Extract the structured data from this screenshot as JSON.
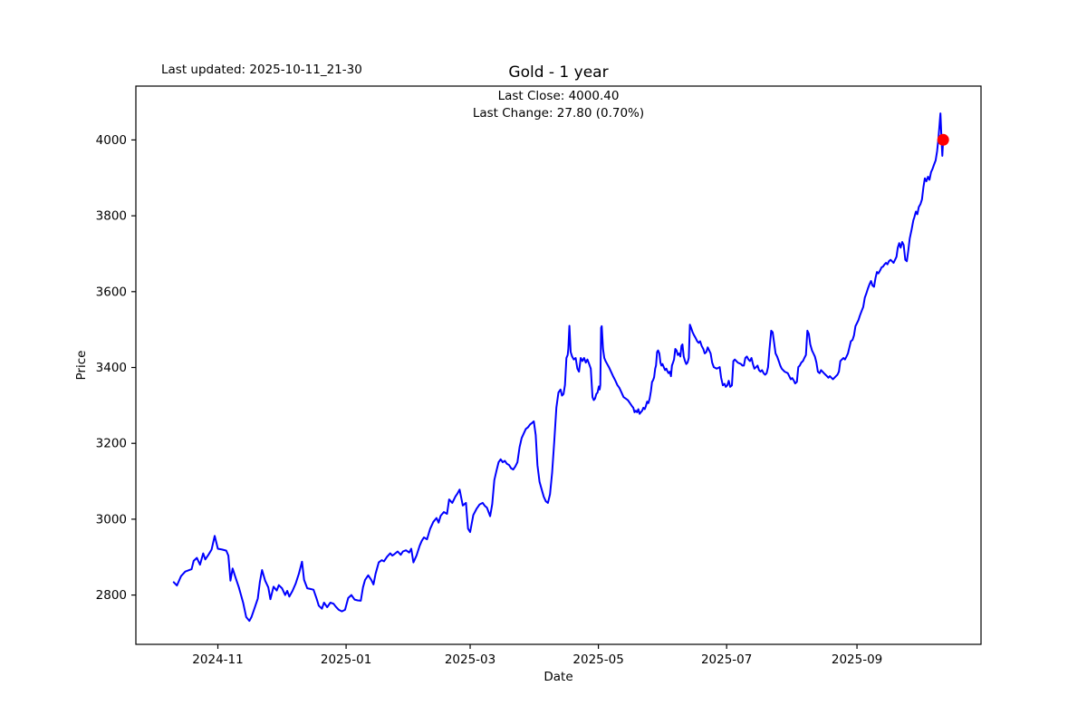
{
  "header": {
    "last_updated": "Last updated: 2025-10-11_21-30"
  },
  "chart_data": {
    "type": "line",
    "title": "Gold - 1 year",
    "xlabel": "Date",
    "ylabel": "Price",
    "annotation": {
      "line1": "Last Close: 4000.40",
      "line2": "Last Change: 27.80 (0.70%)"
    },
    "last_close": 4000.4,
    "last_change": 27.8,
    "last_change_pct": 0.7,
    "line_color": "#0000ff",
    "marker_color": "#ff0000",
    "axis_color": "#000000",
    "grid": false,
    "legend": "none",
    "start_date": "2024-10-11",
    "x_unit": "days_since_start_date",
    "x_domain": [
      -18,
      384
    ],
    "y_domain": [
      2670,
      4142
    ],
    "x_ticks": [
      {
        "day": 21,
        "label": "2024-11"
      },
      {
        "day": 82,
        "label": "2025-01"
      },
      {
        "day": 141,
        "label": "2025-03"
      },
      {
        "day": 202,
        "label": "2025-05"
      },
      {
        "day": 263,
        "label": "2025-07"
      },
      {
        "day": 325,
        "label": "2025-09"
      }
    ],
    "y_ticks": [
      2800,
      3000,
      3200,
      3400,
      3600,
      3800,
      4000
    ],
    "points": [
      [
        0,
        2834
      ],
      [
        1.5,
        2825
      ],
      [
        3.5,
        2850
      ],
      [
        5.5,
        2862
      ],
      [
        8.5,
        2868
      ],
      [
        9.5,
        2890
      ],
      [
        11,
        2898
      ],
      [
        12.5,
        2880
      ],
      [
        14,
        2910
      ],
      [
        15,
        2894
      ],
      [
        16.5,
        2906
      ],
      [
        18,
        2920
      ],
      [
        19.5,
        2956
      ],
      [
        21,
        2922
      ],
      [
        23,
        2920
      ],
      [
        25,
        2917
      ],
      [
        26,
        2904
      ],
      [
        27,
        2838
      ],
      [
        28,
        2870
      ],
      [
        29.5,
        2845
      ],
      [
        31,
        2820
      ],
      [
        33,
        2780
      ],
      [
        34.5,
        2742
      ],
      [
        36,
        2732
      ],
      [
        37,
        2742
      ],
      [
        38.5,
        2766
      ],
      [
        40,
        2791
      ],
      [
        41,
        2835
      ],
      [
        42,
        2866
      ],
      [
        43.5,
        2838
      ],
      [
        45,
        2820
      ],
      [
        46,
        2789
      ],
      [
        47.5,
        2822
      ],
      [
        49,
        2812
      ],
      [
        50,
        2826
      ],
      [
        51.5,
        2818
      ],
      [
        53,
        2800
      ],
      [
        54,
        2811
      ],
      [
        55,
        2796
      ],
      [
        56.5,
        2811
      ],
      [
        58,
        2830
      ],
      [
        59.5,
        2856
      ],
      [
        61,
        2888
      ],
      [
        62,
        2840
      ],
      [
        63.5,
        2818
      ],
      [
        65,
        2816
      ],
      [
        66.5,
        2814
      ],
      [
        68,
        2790
      ],
      [
        69,
        2772
      ],
      [
        70.5,
        2764
      ],
      [
        71.5,
        2780
      ],
      [
        73,
        2768
      ],
      [
        74.5,
        2780
      ],
      [
        76,
        2777
      ],
      [
        77,
        2770
      ],
      [
        78.5,
        2761
      ],
      [
        80,
        2757
      ],
      [
        81.5,
        2761
      ],
      [
        83,
        2792
      ],
      [
        84.5,
        2800
      ],
      [
        86,
        2788
      ],
      [
        87.5,
        2786
      ],
      [
        89,
        2785
      ],
      [
        90,
        2820
      ],
      [
        91,
        2840
      ],
      [
        92.5,
        2852
      ],
      [
        94,
        2840
      ],
      [
        95,
        2828
      ],
      [
        96,
        2856
      ],
      [
        97.5,
        2886
      ],
      [
        99,
        2892
      ],
      [
        100,
        2889
      ],
      [
        101.5,
        2901
      ],
      [
        103,
        2910
      ],
      [
        104,
        2904
      ],
      [
        105,
        2908
      ],
      [
        106.5,
        2915
      ],
      [
        108,
        2906
      ],
      [
        109,
        2915
      ],
      [
        110.5,
        2918
      ],
      [
        112,
        2912
      ],
      [
        113,
        2922
      ],
      [
        114,
        2886
      ],
      [
        115.5,
        2904
      ],
      [
        117,
        2930
      ],
      [
        118,
        2943
      ],
      [
        119,
        2952
      ],
      [
        120.5,
        2947
      ],
      [
        122,
        2975
      ],
      [
        123.5,
        2993
      ],
      [
        125,
        3003
      ],
      [
        126,
        2991
      ],
      [
        127,
        3009
      ],
      [
        128.5,
        3019
      ],
      [
        130,
        3014
      ],
      [
        131,
        3052
      ],
      [
        132.5,
        3043
      ],
      [
        134,
        3060
      ],
      [
        135,
        3068
      ],
      [
        136,
        3078
      ],
      [
        137.5,
        3036
      ],
      [
        139,
        3043
      ],
      [
        140,
        2975
      ],
      [
        141,
        2966
      ],
      [
        142.5,
        3011
      ],
      [
        144,
        3027
      ],
      [
        145.5,
        3039
      ],
      [
        147,
        3043
      ],
      [
        148,
        3035
      ],
      [
        149,
        3030
      ],
      [
        150.5,
        3008
      ],
      [
        151.5,
        3040
      ],
      [
        152.5,
        3103
      ],
      [
        153.5,
        3127
      ],
      [
        154.5,
        3150
      ],
      [
        155.5,
        3158
      ],
      [
        156.5,
        3150
      ],
      [
        157.5,
        3154
      ],
      [
        158.5,
        3146
      ],
      [
        159.5,
        3143
      ],
      [
        160.5,
        3134
      ],
      [
        161.5,
        3131
      ],
      [
        162.5,
        3139
      ],
      [
        163.5,
        3150
      ],
      [
        164.5,
        3190
      ],
      [
        165.5,
        3214
      ],
      [
        166.5,
        3226
      ],
      [
        167.5,
        3238
      ],
      [
        168.5,
        3242
      ],
      [
        169.5,
        3250
      ],
      [
        170.5,
        3254
      ],
      [
        171.3,
        3258
      ],
      [
        172.2,
        3222
      ],
      [
        173,
        3143
      ],
      [
        174,
        3099
      ],
      [
        175,
        3079
      ],
      [
        176,
        3059
      ],
      [
        177,
        3047
      ],
      [
        178,
        3043
      ],
      [
        179,
        3066
      ],
      [
        180,
        3122
      ],
      [
        181,
        3206
      ],
      [
        182,
        3294
      ],
      [
        183,
        3334
      ],
      [
        184,
        3342
      ],
      [
        184.7,
        3326
      ],
      [
        185.4,
        3330
      ],
      [
        186.1,
        3354
      ],
      [
        186.8,
        3425
      ],
      [
        187.4,
        3433
      ],
      [
        187.7,
        3449
      ],
      [
        188.2,
        3510
      ],
      [
        188.8,
        3441
      ],
      [
        189.5,
        3429
      ],
      [
        190.3,
        3421
      ],
      [
        191.2,
        3425
      ],
      [
        192,
        3397
      ],
      [
        192.8,
        3389
      ],
      [
        193.6,
        3425
      ],
      [
        194.4,
        3417
      ],
      [
        195.2,
        3425
      ],
      [
        196,
        3413
      ],
      [
        196.8,
        3421
      ],
      [
        197.6,
        3409
      ],
      [
        198.4,
        3397
      ],
      [
        199.2,
        3322
      ],
      [
        199.8,
        3314
      ],
      [
        200.4,
        3318
      ],
      [
        201,
        3330
      ],
      [
        201.6,
        3334
      ],
      [
        202.2,
        3350
      ],
      [
        202.6,
        3342
      ],
      [
        202.9,
        3354
      ],
      [
        203.3,
        3505
      ],
      [
        203.6,
        3509
      ],
      [
        204.2,
        3449
      ],
      [
        204.8,
        3425
      ],
      [
        205.4,
        3417
      ],
      [
        206.2,
        3409
      ],
      [
        207,
        3401
      ],
      [
        208,
        3389
      ],
      [
        209,
        3377
      ],
      [
        210,
        3366
      ],
      [
        211,
        3354
      ],
      [
        212,
        3346
      ],
      [
        213,
        3334
      ],
      [
        214,
        3322
      ],
      [
        215,
        3318
      ],
      [
        216,
        3314
      ],
      [
        217,
        3306
      ],
      [
        218,
        3298
      ],
      [
        218.6,
        3294
      ],
      [
        219.2,
        3282
      ],
      [
        219.8,
        3286
      ],
      [
        220.4,
        3282
      ],
      [
        221,
        3290
      ],
      [
        221.6,
        3278
      ],
      [
        222.2,
        3282
      ],
      [
        222.8,
        3286
      ],
      [
        223.4,
        3294
      ],
      [
        224,
        3290
      ],
      [
        224.6,
        3298
      ],
      [
        225.2,
        3310
      ],
      [
        225.8,
        3306
      ],
      [
        226.4,
        3318
      ],
      [
        227,
        3338
      ],
      [
        227.5,
        3362
      ],
      [
        228,
        3366
      ],
      [
        228.5,
        3374
      ],
      [
        229,
        3397
      ],
      [
        229.4,
        3405
      ],
      [
        229.9,
        3441
      ],
      [
        230.4,
        3445
      ],
      [
        231,
        3437
      ],
      [
        231.5,
        3413
      ],
      [
        232,
        3405
      ],
      [
        232.5,
        3409
      ],
      [
        233.1,
        3401
      ],
      [
        233.7,
        3393
      ],
      [
        234.3,
        3397
      ],
      [
        234.9,
        3389
      ],
      [
        235.4,
        3385
      ],
      [
        236,
        3389
      ],
      [
        236.5,
        3377
      ],
      [
        237,
        3405
      ],
      [
        237.5,
        3413
      ],
      [
        238,
        3421
      ],
      [
        238.6,
        3449
      ],
      [
        239.2,
        3445
      ],
      [
        239.8,
        3433
      ],
      [
        240.4,
        3437
      ],
      [
        241,
        3429
      ],
      [
        241.5,
        3457
      ],
      [
        242,
        3461
      ],
      [
        242.6,
        3429
      ],
      [
        243.2,
        3417
      ],
      [
        243.8,
        3409
      ],
      [
        244.4,
        3413
      ],
      [
        245,
        3425
      ],
      [
        245.5,
        3513
      ],
      [
        246.1,
        3505
      ],
      [
        246.8,
        3493
      ],
      [
        247.5,
        3485
      ],
      [
        248.3,
        3477
      ],
      [
        249,
        3469
      ],
      [
        249.7,
        3465
      ],
      [
        250.4,
        3469
      ],
      [
        251.1,
        3457
      ],
      [
        251.9,
        3449
      ],
      [
        252.6,
        3437
      ],
      [
        253.3,
        3441
      ],
      [
        254,
        3453
      ],
      [
        254.7,
        3445
      ],
      [
        255.4,
        3437
      ],
      [
        256.1,
        3413
      ],
      [
        256.9,
        3401
      ],
      [
        258.3,
        3397
      ],
      [
        259.7,
        3401
      ],
      [
        260.4,
        3373
      ],
      [
        261.2,
        3353
      ],
      [
        262,
        3357
      ],
      [
        262.6,
        3349
      ],
      [
        263.3,
        3353
      ],
      [
        264,
        3365
      ],
      [
        264.7,
        3349
      ],
      [
        265.5,
        3353
      ],
      [
        266.2,
        3417
      ],
      [
        266.9,
        3421
      ],
      [
        268.3,
        3413
      ],
      [
        269.8,
        3409
      ],
      [
        270.5,
        3405
      ],
      [
        271.2,
        3405
      ],
      [
        271.9,
        3425
      ],
      [
        272.6,
        3429
      ],
      [
        273.4,
        3421
      ],
      [
        274.1,
        3417
      ],
      [
        274.8,
        3425
      ],
      [
        275.5,
        3409
      ],
      [
        276.2,
        3397
      ],
      [
        277,
        3401
      ],
      [
        277.7,
        3405
      ],
      [
        278.4,
        3393
      ],
      [
        279.1,
        3389
      ],
      [
        279.8,
        3393
      ],
      [
        280.6,
        3385
      ],
      [
        281.3,
        3381
      ],
      [
        282,
        3385
      ],
      [
        282.7,
        3401
      ],
      [
        283.4,
        3449
      ],
      [
        284.2,
        3497
      ],
      [
        284.9,
        3493
      ],
      [
        285.6,
        3465
      ],
      [
        286.3,
        3437
      ],
      [
        287,
        3429
      ],
      [
        287.8,
        3417
      ],
      [
        288.5,
        3405
      ],
      [
        289.2,
        3397
      ],
      [
        289.9,
        3393
      ],
      [
        290.6,
        3389
      ],
      [
        291.4,
        3387
      ],
      [
        292.1,
        3385
      ],
      [
        292.8,
        3377
      ],
      [
        293.5,
        3369
      ],
      [
        294.2,
        3372
      ],
      [
        294.9,
        3366
      ],
      [
        295.6,
        3358
      ],
      [
        296.4,
        3362
      ],
      [
        297.1,
        3401
      ],
      [
        297.8,
        3405
      ],
      [
        298.5,
        3413
      ],
      [
        299.3,
        3417
      ],
      [
        300,
        3425
      ],
      [
        300.7,
        3433
      ],
      [
        301.4,
        3497
      ],
      [
        302.1,
        3489
      ],
      [
        302.8,
        3461
      ],
      [
        303.6,
        3445
      ],
      [
        304.3,
        3437
      ],
      [
        305,
        3429
      ],
      [
        305.7,
        3413
      ],
      [
        306.4,
        3389
      ],
      [
        307.2,
        3385
      ],
      [
        307.9,
        3393
      ],
      [
        308.6,
        3389
      ],
      [
        309.3,
        3385
      ],
      [
        310,
        3381
      ],
      [
        310.7,
        3377
      ],
      [
        311.4,
        3373
      ],
      [
        312.1,
        3377
      ],
      [
        312.8,
        3373
      ],
      [
        313.6,
        3369
      ],
      [
        314.3,
        3373
      ],
      [
        315,
        3377
      ],
      [
        315.7,
        3381
      ],
      [
        316.4,
        3389
      ],
      [
        317.1,
        3417
      ],
      [
        317.8,
        3421
      ],
      [
        318.6,
        3425
      ],
      [
        319.3,
        3421
      ],
      [
        320,
        3429
      ],
      [
        320.7,
        3437
      ],
      [
        321.4,
        3453
      ],
      [
        322.1,
        3469
      ],
      [
        322.9,
        3473
      ],
      [
        323.6,
        3485
      ],
      [
        324.3,
        3509
      ],
      [
        325,
        3517
      ],
      [
        325.7,
        3525
      ],
      [
        326.4,
        3537
      ],
      [
        327.2,
        3549
      ],
      [
        328,
        3560
      ],
      [
        328.7,
        3584
      ],
      [
        329.5,
        3596
      ],
      [
        330.2,
        3608
      ],
      [
        331,
        3620
      ],
      [
        331.7,
        3628
      ],
      [
        332.4,
        3616
      ],
      [
        333.1,
        3613
      ],
      [
        333.8,
        3636
      ],
      [
        334.5,
        3652
      ],
      [
        335.2,
        3648
      ],
      [
        336,
        3656
      ],
      [
        336.7,
        3664
      ],
      [
        337.4,
        3666
      ],
      [
        338.1,
        3672
      ],
      [
        338.8,
        3676
      ],
      [
        339.5,
        3672
      ],
      [
        340.2,
        3680
      ],
      [
        341,
        3684
      ],
      [
        341.7,
        3680
      ],
      [
        342.4,
        3676
      ],
      [
        343.1,
        3684
      ],
      [
        343.8,
        3692
      ],
      [
        344.4,
        3716
      ],
      [
        345.1,
        3728
      ],
      [
        345.8,
        3716
      ],
      [
        346.5,
        3731
      ],
      [
        347.2,
        3723
      ],
      [
        348,
        3684
      ],
      [
        348.7,
        3680
      ],
      [
        349.4,
        3708
      ],
      [
        350.1,
        3740
      ],
      [
        351,
        3764
      ],
      [
        351.8,
        3788
      ],
      [
        352.3,
        3796
      ],
      [
        353,
        3811
      ],
      [
        353.7,
        3804
      ],
      [
        354.4,
        3823
      ],
      [
        355.2,
        3831
      ],
      [
        355.9,
        3843
      ],
      [
        356.6,
        3875
      ],
      [
        357.3,
        3899
      ],
      [
        358,
        3891
      ],
      [
        358.8,
        3903
      ],
      [
        359.5,
        3895
      ],
      [
        360.2,
        3915
      ],
      [
        360.9,
        3923
      ],
      [
        361.6,
        3934
      ],
      [
        362.4,
        3946
      ],
      [
        363.1,
        3970
      ],
      [
        363.7,
        4002
      ],
      [
        364.2,
        4034
      ],
      [
        364.7,
        4070
      ],
      [
        365.3,
        3990
      ],
      [
        365.6,
        3958
      ],
      [
        366,
        4000.4
      ]
    ]
  }
}
